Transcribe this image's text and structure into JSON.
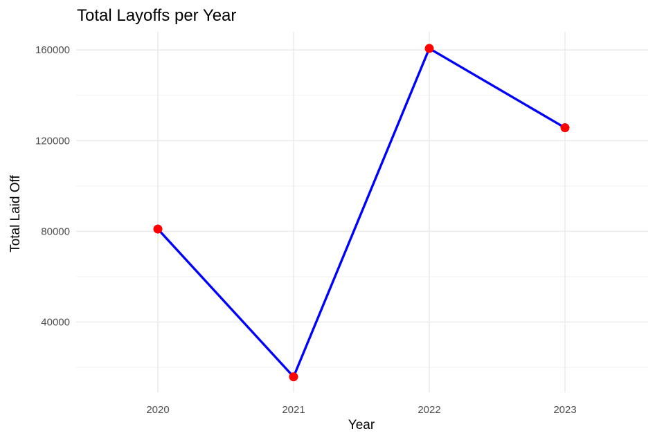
{
  "chart_data": {
    "type": "line",
    "title": "Total Layoffs per Year",
    "xlabel": "Year",
    "ylabel": "Total Laid Off",
    "categories": [
      "2020",
      "2021",
      "2022",
      "2023"
    ],
    "series": [
      {
        "values": [
          80998,
          15823,
          160661,
          125677
        ]
      }
    ],
    "yticks": [
      40000,
      80000,
      120000,
      160000
    ],
    "ytick_labels": [
      "40000",
      "80000",
      "120000",
      "160000"
    ],
    "ylim": [
      9000,
      168000
    ],
    "grid": true,
    "line_color": "#0000ff",
    "point_color": "#ff0000"
  }
}
